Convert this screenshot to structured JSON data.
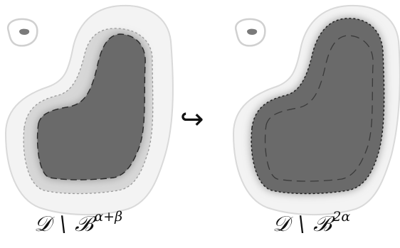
{
  "left_panel": {
    "label_main": "𝒟 \\ ℬ",
    "label_sup": "α+β"
  },
  "right_panel": {
    "label_main": "𝒟 \\ ℬ",
    "label_sup": "2α"
  },
  "arrow": "↪",
  "colors": {
    "outer_region": "#e4e4e4",
    "outer_outline": "#cfcfcf",
    "middle_region": "#cdcdcd",
    "core_region": "#6a6a6a",
    "core_shadow": "#9a9a9a"
  }
}
